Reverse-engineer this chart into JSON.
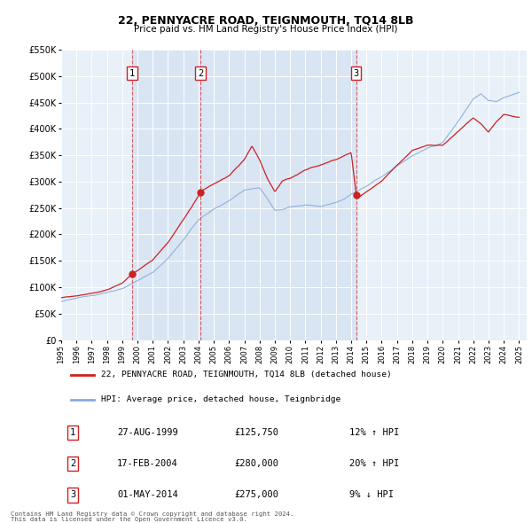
{
  "title": "22, PENNYACRE ROAD, TEIGNMOUTH, TQ14 8LB",
  "subtitle": "Price paid vs. HM Land Registry's House Price Index (HPI)",
  "background_color": "#ffffff",
  "chart_bg_color": "#e8f0f8",
  "shaded_region_color": "#d0dff0",
  "grid_color": "#ffffff",
  "ylim": [
    0,
    550000
  ],
  "yticks": [
    0,
    50000,
    100000,
    150000,
    200000,
    250000,
    300000,
    350000,
    400000,
    450000,
    500000,
    550000
  ],
  "ytick_labels": [
    "£0",
    "£50K",
    "£100K",
    "£150K",
    "£200K",
    "£250K",
    "£300K",
    "£350K",
    "£400K",
    "£450K",
    "£500K",
    "£550K"
  ],
  "xlim_start": 1995.0,
  "xlim_end": 2025.5,
  "xticks": [
    1995,
    1996,
    1997,
    1998,
    1999,
    2000,
    2001,
    2002,
    2003,
    2004,
    2005,
    2006,
    2007,
    2008,
    2009,
    2010,
    2011,
    2012,
    2013,
    2014,
    2015,
    2016,
    2017,
    2018,
    2019,
    2020,
    2021,
    2022,
    2023,
    2024,
    2025
  ],
  "sale_color": "#cc2222",
  "hpi_color": "#88aadd",
  "sale_dot_color": "#cc2222",
  "vline_color": "#dd4444",
  "transactions": [
    {
      "id": 1,
      "date_num": 1999.65,
      "price": 125750,
      "label": "1"
    },
    {
      "id": 2,
      "date_num": 2004.12,
      "price": 280000,
      "label": "2"
    },
    {
      "id": 3,
      "date_num": 2014.33,
      "price": 275000,
      "label": "3"
    }
  ],
  "transaction_table": [
    {
      "num": "1",
      "date": "27-AUG-1999",
      "price": "£125,750",
      "change": "12% ↑ HPI"
    },
    {
      "num": "2",
      "date": "17-FEB-2004",
      "price": "£280,000",
      "change": "20% ↑ HPI"
    },
    {
      "num": "3",
      "date": "01-MAY-2014",
      "price": "£275,000",
      "change": "9% ↓ HPI"
    }
  ],
  "legend_line1": "22, PENNYACRE ROAD, TEIGNMOUTH, TQ14 8LB (detached house)",
  "legend_line2": "HPI: Average price, detached house, Teignbridge",
  "footer_line1": "Contains HM Land Registry data © Crown copyright and database right 2024.",
  "footer_line2": "This data is licensed under the Open Government Licence v3.0."
}
